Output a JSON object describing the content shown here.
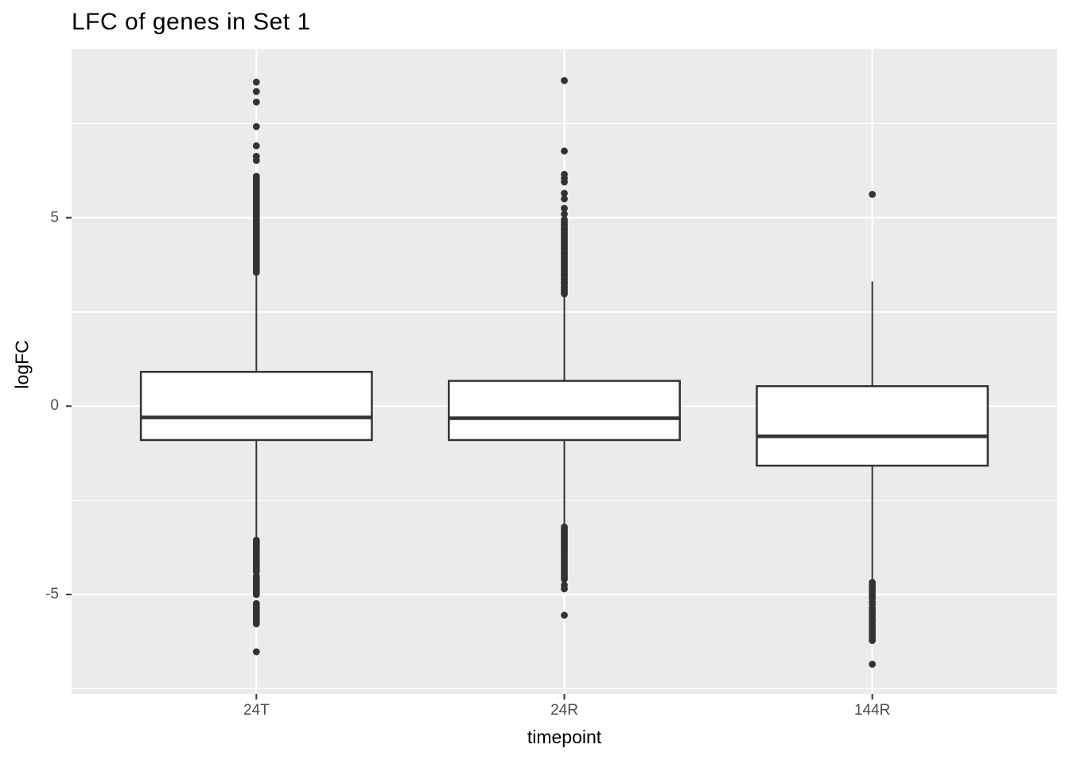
{
  "chart_data": {
    "type": "boxplot",
    "title": "LFC of genes in Set 1",
    "xlabel": "timepoint",
    "ylabel": "logFC",
    "categories": [
      "24T",
      "24R",
      "144R"
    ],
    "ylim": [
      -7.64,
      9.47
    ],
    "yticks_major": [
      {
        "value": 5,
        "label": "5"
      },
      {
        "value": 0,
        "label": "0"
      },
      {
        "value": -5,
        "label": "-5"
      }
    ],
    "yticks_minor": [
      7.5,
      2.5,
      -2.5,
      -7.5
    ],
    "grid": "on",
    "legend": "none",
    "colors": {
      "panel_bg": "#ebebeb",
      "grid": "#ffffff",
      "box_stroke": "#333333",
      "box_fill": "#ffffff",
      "outlier": "#333333",
      "tick_mark": "#333333",
      "tick_text": "#4d4d4d",
      "title_text": "#000000"
    },
    "series": [
      {
        "name": "24T",
        "q1": -0.9,
        "median": -0.3,
        "q3": 0.91,
        "whisker_low": -3.52,
        "whisker_high": 3.52,
        "outliers_high": [
          8.6,
          8.35,
          8.07,
          7.42,
          6.91,
          6.63,
          6.52,
          6.1,
          6.04,
          5.98,
          5.92,
          5.86,
          5.8,
          5.74,
          5.69,
          5.63,
          5.57,
          5.51,
          5.45,
          5.39,
          5.33,
          5.27,
          5.21,
          5.15,
          5.09,
          5.03,
          4.97,
          4.91,
          4.85,
          4.79,
          4.73,
          4.67,
          4.61,
          4.55,
          4.49,
          4.43,
          4.37,
          4.31,
          4.25,
          4.19,
          4.13,
          4.07,
          4.01,
          3.95,
          3.89,
          3.83,
          3.77,
          3.71,
          3.65,
          3.6,
          3.55
        ],
        "outliers_low": [
          -3.56,
          -3.62,
          -3.68,
          -3.74,
          -3.8,
          -3.86,
          -3.92,
          -3.98,
          -4.04,
          -4.1,
          -4.16,
          -4.22,
          -4.28,
          -4.34,
          -4.4,
          -4.52,
          -4.58,
          -4.64,
          -4.7,
          -4.76,
          -4.82,
          -4.88,
          -4.94,
          -5.0,
          -5.24,
          -5.3,
          -5.36,
          -5.42,
          -5.48,
          -5.54,
          -5.6,
          -5.66,
          -5.72,
          -5.78,
          -6.52
        ]
      },
      {
        "name": "24R",
        "q1": -0.9,
        "median": -0.32,
        "q3": 0.67,
        "whisker_low": -3.17,
        "whisker_high": 2.96,
        "outliers_high": [
          8.64,
          6.77,
          6.15,
          6.05,
          5.95,
          5.65,
          5.5,
          5.25,
          5.1,
          4.95,
          4.9,
          4.84,
          4.79,
          4.73,
          4.68,
          4.62,
          4.57,
          4.51,
          4.46,
          4.4,
          4.35,
          4.29,
          4.24,
          4.18,
          4.13,
          4.07,
          4.02,
          3.96,
          3.91,
          3.85,
          3.8,
          3.74,
          3.69,
          3.63,
          3.58,
          3.52,
          3.47,
          3.41,
          3.36,
          3.3,
          3.25,
          3.19,
          3.14,
          3.08,
          3.03,
          2.98
        ],
        "outliers_low": [
          -3.21,
          -3.27,
          -3.33,
          -3.39,
          -3.45,
          -3.51,
          -3.57,
          -3.63,
          -3.69,
          -3.75,
          -3.81,
          -3.87,
          -3.93,
          -3.99,
          -4.05,
          -4.11,
          -4.17,
          -4.23,
          -4.29,
          -4.35,
          -4.41,
          -4.47,
          -4.53,
          -4.59,
          -4.75,
          -4.85,
          -5.55
        ]
      },
      {
        "name": "144R",
        "q1": -1.58,
        "median": -0.8,
        "q3": 0.53,
        "whisker_low": -4.64,
        "whisker_high": 3.31,
        "outliers_high": [
          5.62
        ],
        "outliers_low": [
          -4.68,
          -4.74,
          -4.8,
          -4.86,
          -4.92,
          -4.98,
          -5.04,
          -5.1,
          -5.2,
          -5.26,
          -5.36,
          -5.42,
          -5.48,
          -5.54,
          -5.62,
          -5.68,
          -5.74,
          -5.8,
          -5.86,
          -5.92,
          -5.98,
          -6.04,
          -6.1,
          -6.16,
          -6.22,
          -6.85
        ]
      }
    ]
  }
}
